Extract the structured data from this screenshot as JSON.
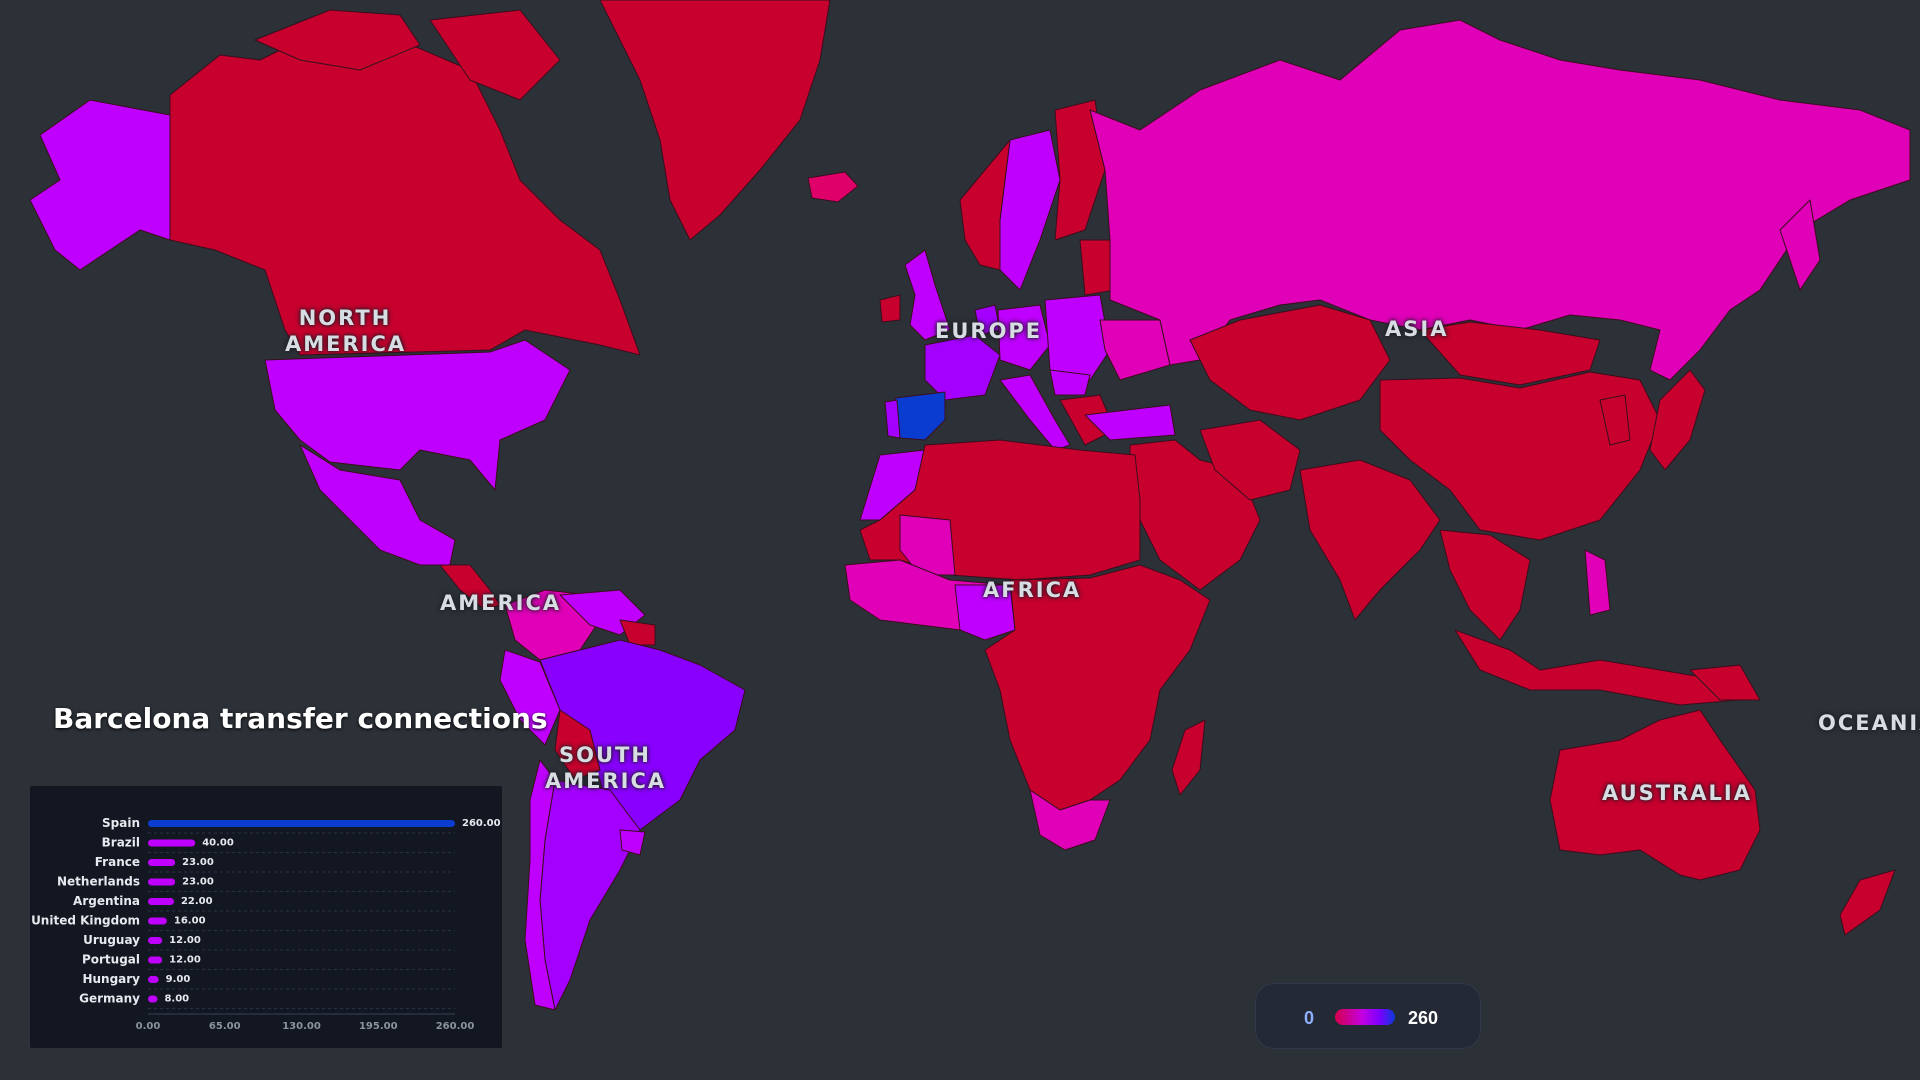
{
  "title": "Barcelona transfer connections",
  "continents": {
    "north_america": "NORTH AMERICA",
    "america": "AMERICA",
    "south_america": "SOUTH AMERICA",
    "europe": "EUROPE",
    "asia": "ASIA",
    "africa": "AFRICA",
    "australia": "AUSTRALIA",
    "oceania": "OCEANIA"
  },
  "legend": {
    "min": "0",
    "max": "260"
  },
  "colors": {
    "ocean": "#2c3138",
    "base": "#c8002e",
    "low": "#d400a8",
    "mid": "#c000ff",
    "high": "#8a00ff",
    "top": "#0b3cd0"
  },
  "chart_data": {
    "type": "bar",
    "orientation": "horizontal",
    "categories": [
      "Spain",
      "Brazil",
      "France",
      "Netherlands",
      "Argentina",
      "United Kingdom",
      "Uruguay",
      "Portugal",
      "Hungary",
      "Germany"
    ],
    "values": [
      260,
      40,
      23,
      23,
      22,
      16,
      12,
      12,
      9,
      8
    ],
    "value_labels": [
      "260.00",
      "40.00",
      "23.00",
      "23.00",
      "22.00",
      "16.00",
      "12.00",
      "12.00",
      "9.00",
      "8.00"
    ],
    "ticks": [
      "0.00",
      "65.00",
      "130.00",
      "195.00",
      "260.00"
    ],
    "xlim": [
      0,
      260
    ],
    "grid": true,
    "title": "",
    "xlabel": "",
    "ylabel": ""
  }
}
